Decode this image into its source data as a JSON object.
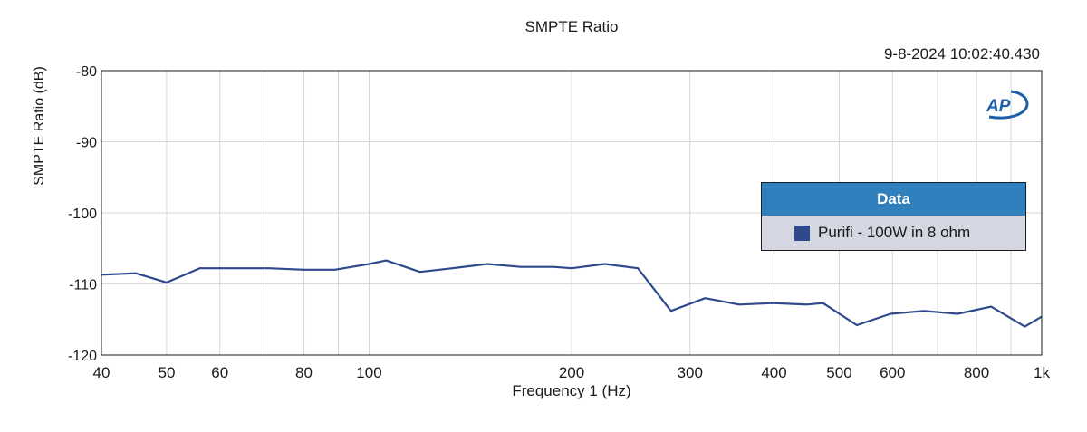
{
  "chart_data": {
    "type": "line",
    "title": "SMPTE Ratio",
    "timestamp": "9-8-2024 10:02:40.430",
    "xlabel": "Frequency 1 (Hz)",
    "ylabel": "SMPTE Ratio (dB)",
    "x_scale": "log",
    "xlim": [
      40,
      1000
    ],
    "ylim": [
      -120,
      -80
    ],
    "x_ticks": [
      {
        "value": 40,
        "label": "40"
      },
      {
        "value": 50,
        "label": "50"
      },
      {
        "value": 60,
        "label": "60"
      },
      {
        "value": 80,
        "label": "80"
      },
      {
        "value": 100,
        "label": "100"
      },
      {
        "value": 200,
        "label": "200"
      },
      {
        "value": 300,
        "label": "300"
      },
      {
        "value": 400,
        "label": "400"
      },
      {
        "value": 500,
        "label": "500"
      },
      {
        "value": 600,
        "label": "600"
      },
      {
        "value": 800,
        "label": "800"
      },
      {
        "value": 1000,
        "label": "1k"
      }
    ],
    "x_minor_gridlines": [
      70,
      90,
      700,
      900
    ],
    "y_ticks": [
      {
        "value": -80,
        "label": "-80"
      },
      {
        "value": -90,
        "label": "-90"
      },
      {
        "value": -100,
        "label": "-100"
      },
      {
        "value": -110,
        "label": "-110"
      },
      {
        "value": -120,
        "label": "-120"
      }
    ],
    "grid": true,
    "legend": {
      "title": "Data",
      "placement": "right"
    },
    "series": [
      {
        "name": "Purifi - 100W in 8 ohm",
        "color": "#2e4a8c",
        "x": [
          40,
          45,
          50,
          56,
          63,
          71,
          80,
          89,
          100,
          106,
          119,
          133,
          150,
          168,
          188,
          200,
          224,
          251,
          281,
          316,
          355,
          398,
          447,
          473,
          531,
          596,
          668,
          750,
          841,
          944,
          1000
        ],
        "y": [
          -108.7,
          -108.5,
          -109.8,
          -107.8,
          -107.8,
          -107.8,
          -108.0,
          -108.0,
          -107.2,
          -106.7,
          -108.3,
          -107.8,
          -107.2,
          -107.6,
          -107.6,
          -107.8,
          -107.2,
          -107.8,
          -113.8,
          -112.0,
          -112.9,
          -112.7,
          -112.9,
          -112.7,
          -115.8,
          -114.2,
          -113.8,
          -114.2,
          -113.2,
          -116.0,
          -114.6
        ]
      }
    ]
  },
  "logo": {
    "text": "AP",
    "color": "#1f5ea8"
  }
}
